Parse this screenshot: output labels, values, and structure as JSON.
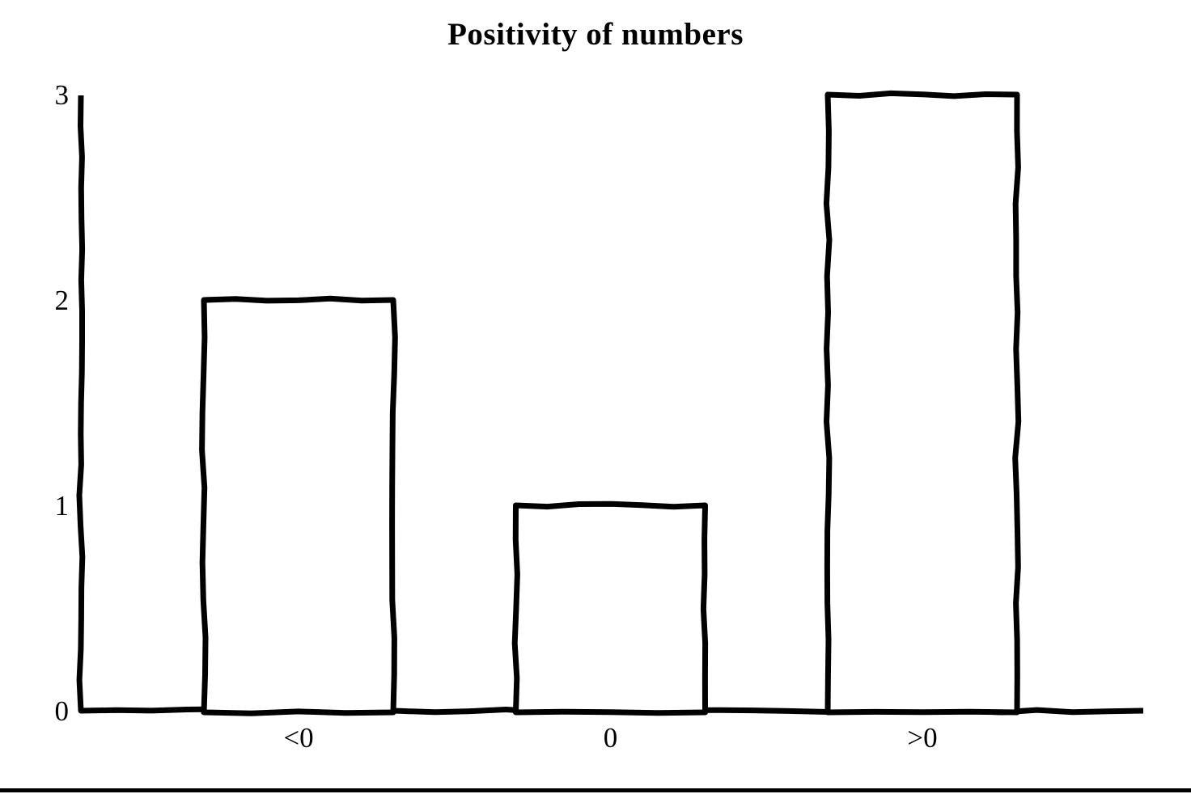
{
  "page": {
    "background": "#ffffff",
    "bottom_rule_color": "#000000"
  },
  "chart_data": {
    "type": "bar",
    "title": "Positivity of numbers",
    "categories": [
      "<0",
      "0",
      ">0"
    ],
    "values": [
      2,
      1,
      3
    ],
    "xlabel": "",
    "ylabel": "",
    "ylim": [
      0,
      3
    ],
    "yticks": [
      0,
      1,
      2,
      3
    ],
    "grid": false,
    "legend": false,
    "style": "hand-drawn-sketch",
    "bar_fill": "#ffffff",
    "bar_stroke": "#000000",
    "axis_color": "#000000",
    "text_color": "#000000"
  }
}
